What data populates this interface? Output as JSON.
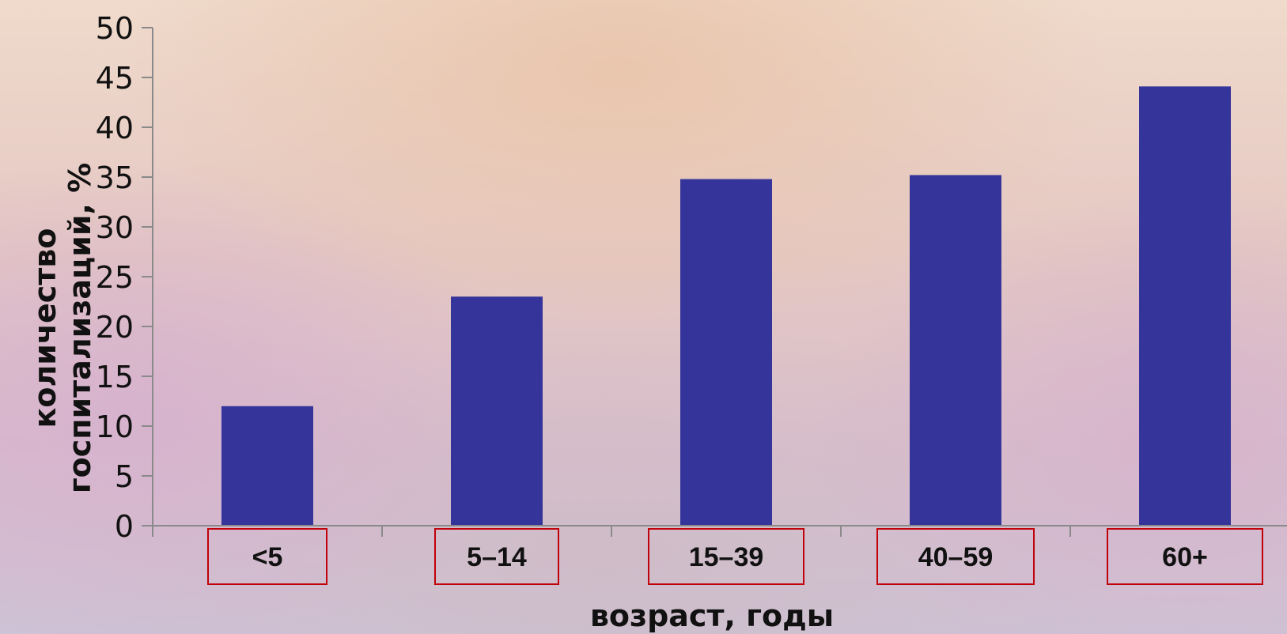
{
  "chart_data": {
    "type": "bar",
    "categories": [
      "<5",
      "5–14",
      "15–39",
      "40–59",
      "60+"
    ],
    "values": [
      12,
      23,
      34.8,
      35.2,
      44.1
    ],
    "xlabel": "возраст, годы",
    "ylabel": [
      "количество",
      "госпитализаций, %"
    ],
    "ylim": [
      0,
      50
    ],
    "yticks": [
      0,
      5,
      10,
      15,
      20,
      25,
      30,
      35,
      40,
      45,
      50
    ],
    "grid": false,
    "legend": "none",
    "bar_color": "#34349a",
    "axis_color": "#8a8a8a",
    "category_box_color": "#c0000a"
  }
}
